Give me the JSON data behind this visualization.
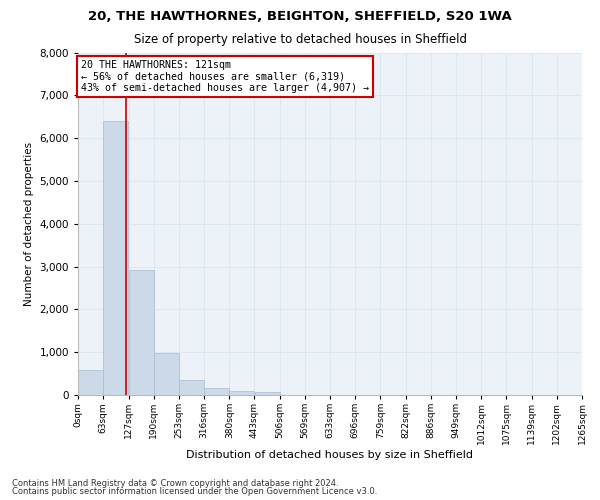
{
  "title1": "20, THE HAWTHORNES, BEIGHTON, SHEFFIELD, S20 1WA",
  "title2": "Size of property relative to detached houses in Sheffield",
  "xlabel": "Distribution of detached houses by size in Sheffield",
  "ylabel": "Number of detached properties",
  "footnote1": "Contains HM Land Registry data © Crown copyright and database right 2024.",
  "footnote2": "Contains public sector information licensed under the Open Government Licence v3.0.",
  "bin_labels": [
    "0sqm",
    "63sqm",
    "127sqm",
    "190sqm",
    "253sqm",
    "316sqm",
    "380sqm",
    "443sqm",
    "506sqm",
    "569sqm",
    "633sqm",
    "696sqm",
    "759sqm",
    "822sqm",
    "886sqm",
    "949sqm",
    "1012sqm",
    "1075sqm",
    "1139sqm",
    "1202sqm",
    "1265sqm"
  ],
  "bar_values": [
    580,
    6400,
    2920,
    970,
    360,
    155,
    90,
    60,
    0,
    0,
    0,
    0,
    0,
    0,
    0,
    0,
    0,
    0,
    0,
    0
  ],
  "bin_edges": [
    0,
    63,
    127,
    190,
    253,
    316,
    380,
    443,
    506,
    569,
    633,
    696,
    759,
    822,
    886,
    949,
    1012,
    1075,
    1139,
    1202,
    1265
  ],
  "vline_x": 121,
  "annotation_text_line1": "20 THE HAWTHORNES: 121sqm",
  "annotation_text_line2": "← 56% of detached houses are smaller (6,319)",
  "annotation_text_line3": "43% of semi-detached houses are larger (4,907) →",
  "bar_color": "#ccd9e8",
  "bar_edge_color": "#a8bdd0",
  "vline_color": "#cc0000",
  "annotation_box_color": "#cc0000",
  "grid_color": "#dce8f0",
  "background_color": "#edf2f8",
  "ylim": [
    0,
    8000
  ],
  "yticks": [
    0,
    1000,
    2000,
    3000,
    4000,
    5000,
    6000,
    7000,
    8000
  ]
}
